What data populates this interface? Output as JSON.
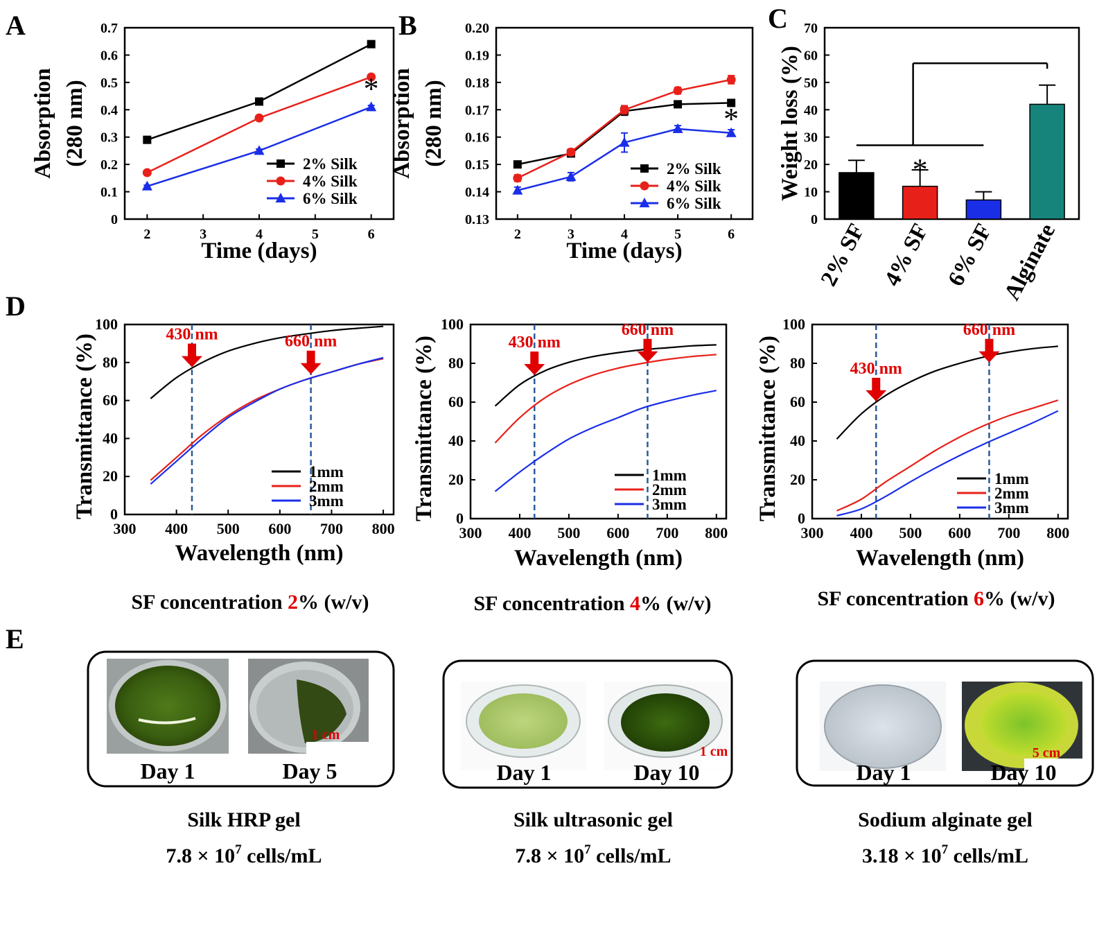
{
  "panel_letters": [
    "A",
    "B",
    "C",
    "D",
    "E"
  ],
  "colors": {
    "black": "#000000",
    "red": "#e8201a",
    "blue": "#1a2ee8",
    "teal": "#16847a",
    "annot": "#e00000",
    "dashed": "#2a5a9a"
  },
  "chart_data": [
    {
      "id": "A",
      "type": "line",
      "xlabel": "Time (days)",
      "ylabel": "Absorption",
      "ylabel2": "(280 nm)",
      "xlim": [
        1.6,
        6.4
      ],
      "ylim": [
        0,
        0.7
      ],
      "xticks": [
        "2",
        "3",
        "4",
        "5",
        "6"
      ],
      "yticks": [
        "0",
        "0.1",
        "0.2",
        "0.3",
        "0.4",
        "0.5",
        "0.6",
        "0.7"
      ],
      "x": [
        2,
        4,
        6
      ],
      "series": [
        {
          "name": "2% Silk",
          "color": "#000000",
          "marker": "square",
          "values": [
            0.29,
            0.43,
            0.64
          ],
          "errors": [
            0.008,
            0.012,
            0.004
          ]
        },
        {
          "name": "4% Silk",
          "color": "#e8201a",
          "marker": "circle",
          "values": [
            0.17,
            0.37,
            0.52
          ],
          "errors": [
            0.004,
            0.004,
            0.006
          ]
        },
        {
          "name": "6% Silk",
          "color": "#1a2ee8",
          "marker": "triangle",
          "values": [
            0.12,
            0.25,
            0.41
          ],
          "errors": [
            0.004,
            0.006,
            0.006
          ]
        }
      ],
      "annotation": "*",
      "legend_position": "bottom-right"
    },
    {
      "id": "B",
      "type": "line",
      "xlabel": "Time (days)",
      "ylabel": "Absorption",
      "ylabel2": "(280 nm)",
      "xlim": [
        1.6,
        6.4
      ],
      "ylim": [
        0.13,
        0.2
      ],
      "xticks": [
        "2",
        "3",
        "4",
        "5",
        "6"
      ],
      "yticks": [
        "0.13",
        "0.14",
        "0.15",
        "0.16",
        "0.17",
        "0.18",
        "0.19",
        "0.20"
      ],
      "x": [
        2,
        3,
        4,
        5,
        6
      ],
      "series": [
        {
          "name": "2% Silk",
          "color": "#000000",
          "marker": "square",
          "values": [
            0.15,
            0.154,
            0.1695,
            0.172,
            0.1725
          ],
          "errors": [
            0.0012,
            0.0012,
            0.0015,
            0.0008,
            0.0012
          ]
        },
        {
          "name": "4% Silk",
          "color": "#e8201a",
          "marker": "circle",
          "values": [
            0.145,
            0.1545,
            0.17,
            0.177,
            0.181
          ],
          "errors": [
            0.0012,
            0.0012,
            0.0015,
            0.0012,
            0.0015
          ]
        },
        {
          "name": "6% Silk",
          "color": "#1a2ee8",
          "marker": "triangle",
          "values": [
            0.1405,
            0.1455,
            0.158,
            0.163,
            0.1615
          ],
          "errors": [
            0.0012,
            0.0015,
            0.0035,
            0.0012,
            0.0012
          ]
        }
      ],
      "annotation": "*",
      "legend_position": "bottom-right"
    },
    {
      "id": "C",
      "type": "bar",
      "ylabel": "Weight loss (%)",
      "ylim": [
        0,
        70
      ],
      "yticks": [
        "0",
        "10",
        "20",
        "30",
        "40",
        "50",
        "60",
        "70"
      ],
      "categories": [
        "2% SF",
        "4% SF",
        "6% SF",
        "Alginate"
      ],
      "category_colors": [
        "#000000",
        "#e8201a",
        "#1a2ee8",
        "#16847a"
      ],
      "values": [
        17,
        12,
        7,
        42
      ],
      "errors": [
        4.5,
        6,
        3,
        7
      ],
      "annotation": "*"
    },
    {
      "id": "D1",
      "type": "line",
      "xlabel": "Wavelength (nm)",
      "ylabel": "Transmittance (%)",
      "xlim": [
        300,
        820
      ],
      "ylim": [
        0,
        100
      ],
      "xticks": [
        "300",
        "400",
        "500",
        "600",
        "700",
        "800"
      ],
      "yticks": [
        "0",
        "20",
        "40",
        "60",
        "80",
        "100"
      ],
      "x": [
        350,
        400,
        450,
        500,
        550,
        600,
        650,
        700,
        750,
        800
      ],
      "series": [
        {
          "name": "1mm",
          "color": "#000000",
          "values": [
            61,
            72,
            80,
            86,
            90,
            93,
            95,
            96.8,
            98,
            99
          ]
        },
        {
          "name": "2mm",
          "color": "#e8201a",
          "values": [
            18,
            30,
            42,
            52,
            60,
            66,
            71,
            75,
            79,
            82
          ]
        },
        {
          "name": "3mm",
          "color": "#1a2ee8",
          "values": [
            16,
            28,
            40,
            51,
            59,
            66,
            71,
            75,
            79,
            82.5
          ]
        }
      ],
      "markers": [
        "430 nm",
        "660 nm"
      ],
      "marker_x": [
        430,
        660
      ],
      "caption_prefix": "SF concentration ",
      "caption_highlight": "2",
      "caption_suffix": "% (w/v)"
    },
    {
      "id": "D2",
      "type": "line",
      "xlabel": "Wavelength (nm)",
      "ylabel": "Transmittance (%)",
      "xlim": [
        300,
        820
      ],
      "ylim": [
        0,
        100
      ],
      "xticks": [
        "300",
        "400",
        "500",
        "600",
        "700",
        "800"
      ],
      "yticks": [
        "0",
        "20",
        "40",
        "60",
        "80",
        "100"
      ],
      "x": [
        350,
        400,
        450,
        500,
        550,
        600,
        650,
        700,
        750,
        800
      ],
      "series": [
        {
          "name": "1mm",
          "color": "#000000",
          "values": [
            58,
            69,
            76,
            80.5,
            83.5,
            85.5,
            87,
            88,
            89,
            89.5
          ]
        },
        {
          "name": "2mm",
          "color": "#e8201a",
          "values": [
            39,
            52,
            62,
            69,
            74,
            77.5,
            80,
            82,
            83.5,
            84.5
          ]
        },
        {
          "name": "3mm",
          "color": "#1a2ee8",
          "values": [
            14,
            24,
            33,
            41,
            47,
            52,
            57,
            60.5,
            63.5,
            66
          ]
        }
      ],
      "markers": [
        "430 nm",
        "660 nm"
      ],
      "marker_x": [
        430,
        660
      ],
      "caption_prefix": "SF concentration ",
      "caption_highlight": "4",
      "caption_suffix": "% (w/v)"
    },
    {
      "id": "D3",
      "type": "line",
      "xlabel": "Wavelength (nm)",
      "ylabel": "Transmittance (%)",
      "xlim": [
        300,
        820
      ],
      "ylim": [
        0,
        100
      ],
      "xticks": [
        "300",
        "400",
        "500",
        "600",
        "700",
        "800"
      ],
      "yticks": [
        "0",
        "20",
        "40",
        "60",
        "80",
        "100"
      ],
      "x": [
        350,
        400,
        450,
        500,
        550,
        600,
        650,
        700,
        750,
        800
      ],
      "series": [
        {
          "name": "1mm",
          "color": "#000000",
          "values": [
            41,
            54,
            63.5,
            70.5,
            76,
            80,
            83.3,
            85.8,
            87.6,
            88.8
          ]
        },
        {
          "name": "2mm",
          "color": "#e8201a",
          "values": [
            4,
            10,
            19,
            27,
            35,
            42,
            48,
            53,
            57,
            61
          ]
        },
        {
          "name": "3mm",
          "color": "#1a2ee8",
          "values": [
            1.5,
            5,
            11.5,
            19,
            26,
            32.5,
            38.5,
            44,
            49.5,
            55.5
          ]
        }
      ],
      "markers": [
        "430 nm",
        "660 nm"
      ],
      "marker_x": [
        430,
        660
      ],
      "caption_prefix": "SF concentration ",
      "caption_highlight": "6",
      "caption_suffix": "% (w/v)"
    }
  ],
  "panel_e": [
    {
      "label1": "Day 1",
      "label2": "Day 5",
      "scale": "1 cm",
      "title": "Silk  HRP gel",
      "density": "7.8 × 10",
      "density_exp": "7",
      "density_unit": " cells/mL"
    },
    {
      "label1": "Day 1",
      "label2": "Day 10",
      "scale": "1 cm",
      "title": "Silk  ultrasonic gel",
      "density": "7.8 × 10",
      "density_exp": "7",
      "density_unit": " cells/mL"
    },
    {
      "label1": "Day 1",
      "label2": "Day 10",
      "scale": "5 cm",
      "title": "Sodium alginate gel",
      "density": "3.18 × 10",
      "density_exp": "7",
      "density_unit": " cells/mL"
    }
  ]
}
